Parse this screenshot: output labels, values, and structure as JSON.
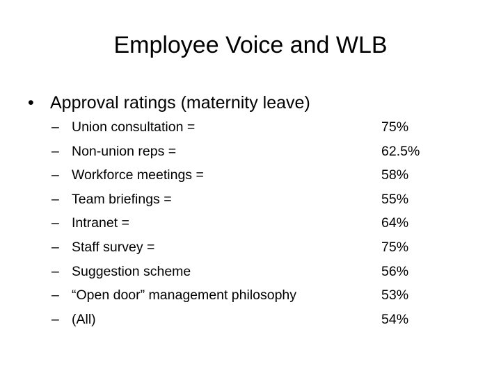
{
  "header": {
    "title": "Employee Voice and WLB"
  },
  "bullet": {
    "text": "Approval ratings (maternity leave)",
    "items": [
      {
        "label": "Union consultation =",
        "value": "75%"
      },
      {
        "label": "Non-union reps =",
        "value": "62.5%"
      },
      {
        "label": "Workforce meetings =",
        "value": "58%"
      },
      {
        "label": "Team briefings =",
        "value": "55%"
      },
      {
        "label": "Intranet =",
        "value": "64%"
      },
      {
        "label": "Staff survey =",
        "value": "75%"
      },
      {
        "label": "Suggestion scheme",
        "value": "56%"
      },
      {
        "label": "“Open door” management philosophy",
        "value": "53%"
      },
      {
        "label": "(All)",
        "value": "54%"
      }
    ]
  }
}
